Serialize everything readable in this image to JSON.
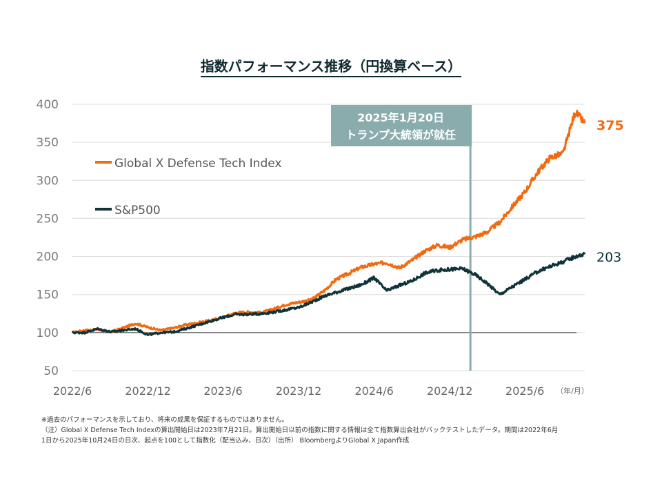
{
  "title": "指数パフォーマンス推移（円換算ベース）",
  "annotation": {
    "line1": "2025年1月20日",
    "line2": "トランプ大統領が就任",
    "date": "2025-01-20",
    "color": "#8aacad"
  },
  "notes": [
    "※過去のパフォーマンスを示しており、将来の成果を保証するものではありません。",
    "（注）Global X Defense Tech Indexの算出開始日は2023年7月21日。算出開始日以前の指数に関する情報は全て指数算出会社がバックテストしたデータ。期間は2022年6月",
    "1日から2025年10月24日の日次、起点を100として指数化（配当込み、日次）（出所） BloombergよりGlobal X Japan作成"
  ],
  "chart_data": {
    "type": "line",
    "xlabel_unit": "（年/月）",
    "ylim": [
      50,
      400
    ],
    "yticks": [
      50,
      100,
      150,
      200,
      250,
      300,
      350,
      400
    ],
    "xticks": [
      "2022/6",
      "2022/12",
      "2023/6",
      "2023/12",
      "2024/6",
      "2024/12",
      "2025/6"
    ],
    "grid": true,
    "legend_placement": "top-left",
    "baseline": 100,
    "x": [
      "2022-06-01",
      "2022-07-01",
      "2022-08-01",
      "2022-09-01",
      "2022-10-01",
      "2022-11-01",
      "2022-12-01",
      "2023-01-01",
      "2023-02-01",
      "2023-03-01",
      "2023-04-01",
      "2023-05-01",
      "2023-06-01",
      "2023-07-01",
      "2023-08-01",
      "2023-09-01",
      "2023-10-01",
      "2023-11-01",
      "2023-12-01",
      "2024-01-01",
      "2024-02-01",
      "2024-03-01",
      "2024-04-01",
      "2024-05-01",
      "2024-06-01",
      "2024-07-01",
      "2024-08-01",
      "2024-09-01",
      "2024-10-01",
      "2024-11-01",
      "2024-12-01",
      "2025-01-01",
      "2025-02-01",
      "2025-03-01",
      "2025-04-01",
      "2025-05-01",
      "2025-06-01",
      "2025-07-01",
      "2025-08-01",
      "2025-09-01",
      "2025-10-01",
      "2025-10-24"
    ],
    "series": [
      {
        "name": "Global X Defense Tech Index",
        "color": "#f26a10",
        "end_label": "375",
        "values": [
          100,
          103,
          104,
          101,
          106,
          112,
          107,
          103,
          106,
          110,
          113,
          116,
          120,
          126,
          127,
          126,
          131,
          137,
          140,
          143,
          155,
          170,
          178,
          186,
          190,
          192,
          185,
          195,
          207,
          215,
          212,
          222,
          226,
          232,
          245,
          265,
          285,
          310,
          330,
          335,
          390,
          375
        ]
      },
      {
        "name": "S&P500",
        "color": "#0f3338",
        "end_label": "203",
        "values": [
          100,
          100,
          105,
          101,
          103,
          105,
          97,
          100,
          101,
          105,
          110,
          115,
          120,
          124,
          124,
          125,
          127,
          130,
          133,
          140,
          148,
          153,
          158,
          163,
          172,
          155,
          162,
          168,
          178,
          182,
          183,
          184,
          176,
          165,
          150,
          160,
          170,
          180,
          187,
          193,
          200,
          203
        ]
      }
    ]
  }
}
